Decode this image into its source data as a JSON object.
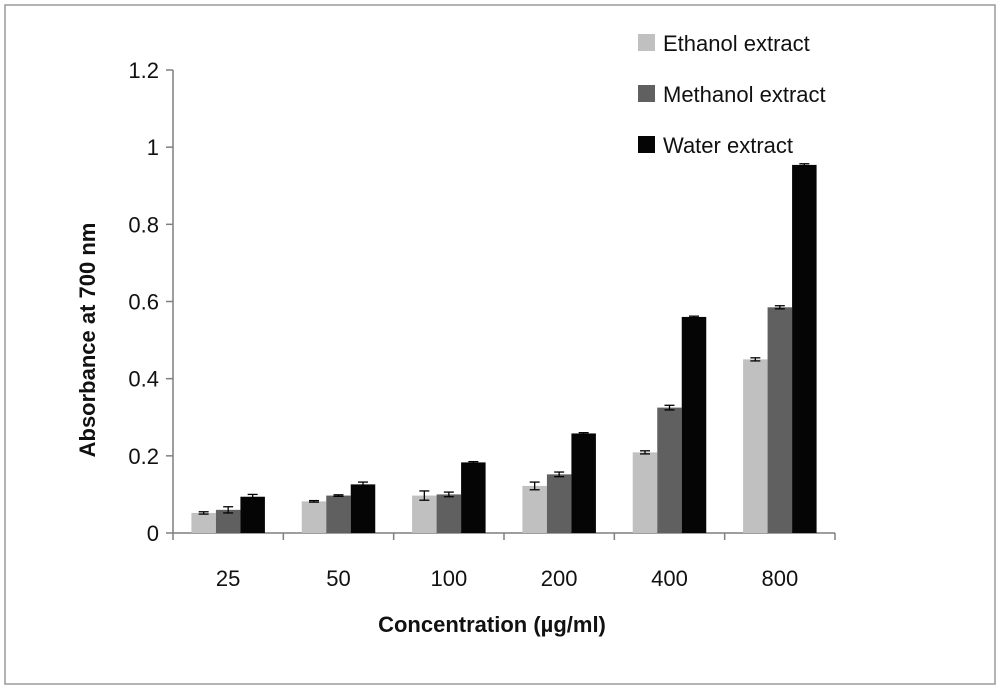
{
  "chart_data": {
    "type": "bar",
    "title": "",
    "xlabel": "Concentration (µg/ml)",
    "ylabel": "Absorbance at 700 nm",
    "categories": [
      "25",
      "50",
      "100",
      "200",
      "400",
      "800"
    ],
    "ylim": [
      0,
      1.2
    ],
    "yticks": [
      "0",
      "0.2",
      "0.4",
      "0.6",
      "0.8",
      "1",
      "1.2"
    ],
    "grid": false,
    "legend_position": "top-right",
    "error_bars": true,
    "series": [
      {
        "name": "Ethanol extract",
        "color": "#c0c0c0",
        "values": [
          0.052,
          0.082,
          0.097,
          0.122,
          0.209,
          0.45
        ],
        "errors": [
          0.003,
          0.002,
          0.012,
          0.01,
          0.004,
          0.004
        ]
      },
      {
        "name": "Methanol extract",
        "color": "#606060",
        "values": [
          0.06,
          0.097,
          0.1,
          0.152,
          0.325,
          0.585
        ],
        "errors": [
          0.008,
          0.002,
          0.006,
          0.006,
          0.006,
          0.004
        ]
      },
      {
        "name": "Water extract",
        "color": "#050505",
        "values": [
          0.094,
          0.126,
          0.183,
          0.258,
          0.56,
          0.954
        ],
        "errors": [
          0.006,
          0.006,
          0.002,
          0.002,
          0.002,
          0.003
        ]
      }
    ]
  }
}
